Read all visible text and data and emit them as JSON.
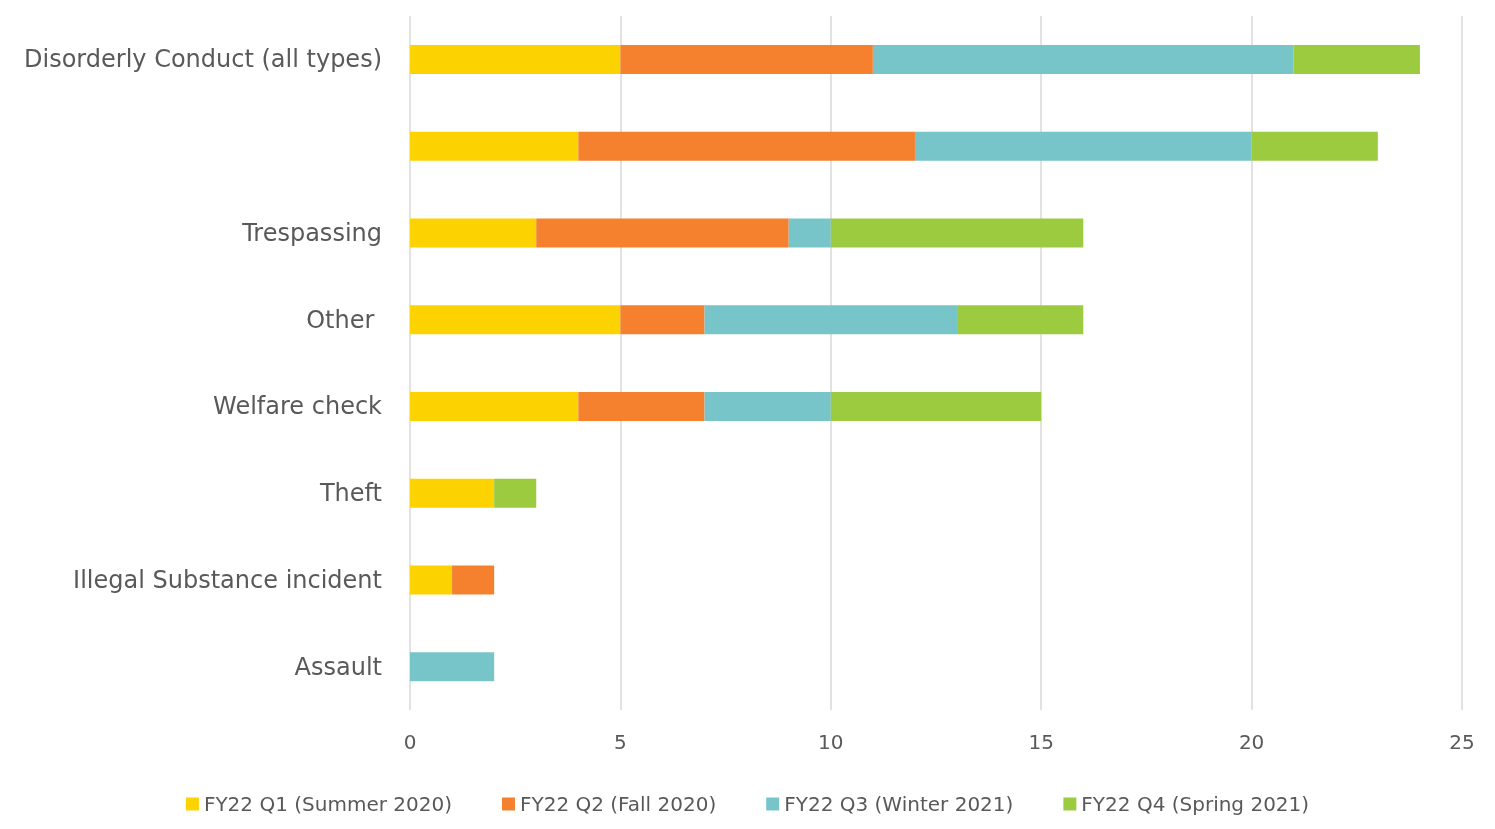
{
  "chart_data": {
    "type": "bar",
    "orientation": "horizontal",
    "stacked": true,
    "categories": [
      "Disorderly Conduct (all types)",
      null,
      "Trespassing",
      "Other ",
      "Welfare check",
      "Theft",
      "Illegal Substance incident",
      "Assault"
    ],
    "series": [
      {
        "name": "FY22 Q1 (Summer 2020)",
        "color": "#fcd200",
        "values": [
          5,
          4,
          3,
          5,
          4,
          2,
          1,
          null
        ]
      },
      {
        "name": "FY22 Q2 (Fall 2020)",
        "color": "#f5812e",
        "values": [
          6,
          8,
          6,
          2,
          3,
          null,
          1,
          null
        ]
      },
      {
        "name": "FY22 Q3 (Winter 2021)",
        "color": "#78c5c9",
        "values": [
          10,
          8,
          1,
          6,
          3,
          null,
          null,
          2
        ]
      },
      {
        "name": "FY22 Q4 (Spring 2021)",
        "color": "#9ccb3f",
        "values": [
          3,
          3,
          6,
          3,
          5,
          1,
          null,
          null
        ]
      }
    ],
    "xlim": [
      0,
      25
    ],
    "xticks": [
      0,
      5,
      10,
      15,
      20,
      25
    ],
    "grid": "x",
    "legend": "bottom"
  }
}
